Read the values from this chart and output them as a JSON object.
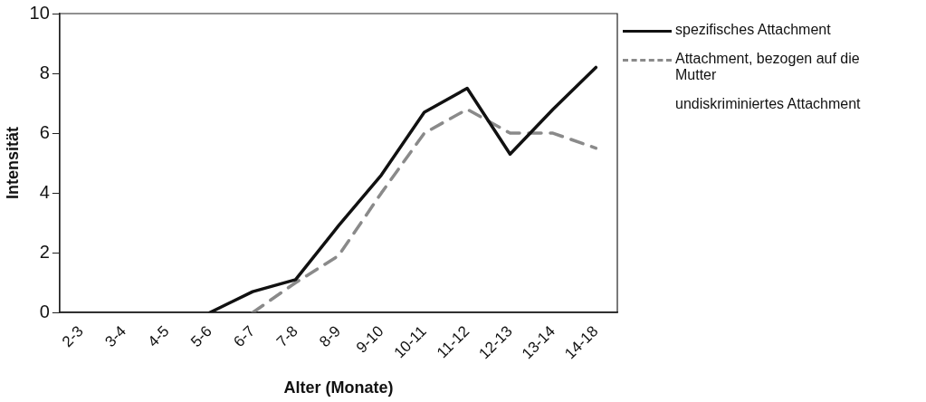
{
  "chart_data": {
    "type": "line",
    "xlabel": "Alter (Monate)",
    "ylabel": "Intensität",
    "categories": [
      "2-3",
      "3-4",
      "4-5",
      "5-6",
      "6-7",
      "7-8",
      "8-9",
      "9-10",
      "10-11",
      "11-12",
      "12-13",
      "13-14",
      "14-18"
    ],
    "ylim": [
      0,
      10
    ],
    "yticks": [
      0,
      2,
      4,
      6,
      8,
      10
    ],
    "grid": false,
    "legend": "right",
    "marker": "none",
    "series": [
      {
        "name": "spezifisches Attachment",
        "color": "#111111",
        "line_style": "solid",
        "values": [
          null,
          null,
          null,
          0,
          0.7,
          1.1,
          2.9,
          4.6,
          6.7,
          7.5,
          5.3,
          6.8,
          8.2
        ]
      },
      {
        "name": "Attachment, bezogen auf die Mutter",
        "color": "#8a8a8a",
        "line_style": "dashed",
        "values": [
          null,
          null,
          null,
          null,
          0,
          1.0,
          1.9,
          4.0,
          6.0,
          6.8,
          6.0,
          6.0,
          5.5
        ]
      },
      {
        "name": "undiskriminiertes Attachment",
        "values": [
          null,
          null,
          null,
          null,
          null,
          null,
          null,
          null,
          null,
          null,
          null,
          null,
          null
        ]
      }
    ]
  }
}
